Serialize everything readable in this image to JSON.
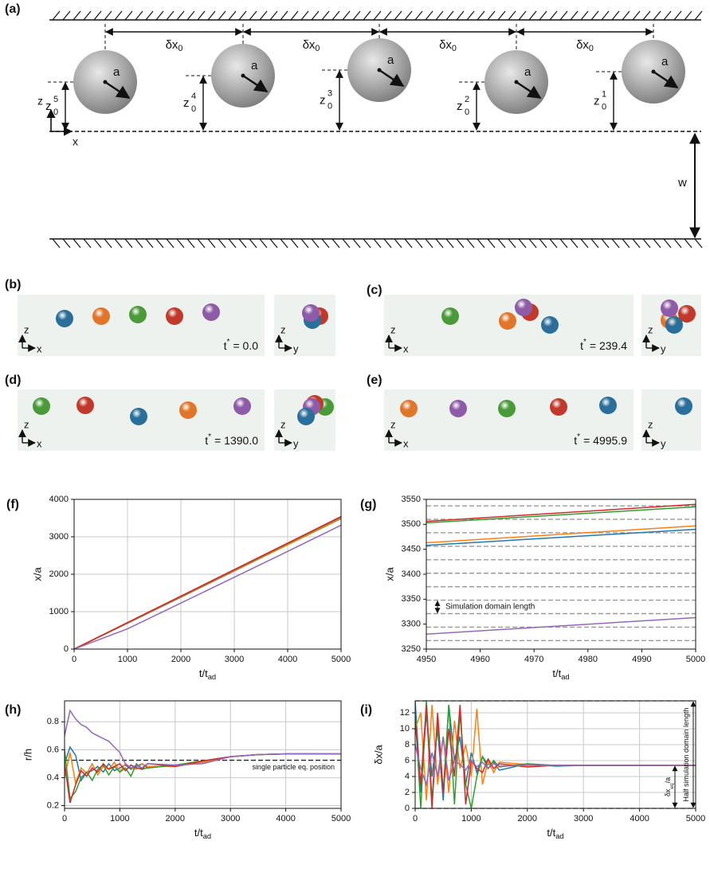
{
  "schematic": {
    "label": "(a)",
    "spacing": {
      "main": "δx",
      "sub": "0"
    },
    "radius": "a",
    "heights": [
      {
        "main": "z",
        "sup": "5",
        "sub": "0"
      },
      {
        "main": "z",
        "sup": "4",
        "sub": "0"
      },
      {
        "main": "z",
        "sup": "3",
        "sub": "0"
      },
      {
        "main": "z",
        "sup": "2",
        "sub": "0"
      },
      {
        "main": "z",
        "sup": "1",
        "sub": "0"
      }
    ],
    "gap": "w",
    "axes": {
      "z": "z",
      "x": "x"
    }
  },
  "snapshots": {
    "axes": {
      "z": "z",
      "x": "x",
      "y": "y"
    },
    "time_symbol": "t",
    "time_sup": "*",
    "particle_colors": [
      "#2a6f9b",
      "#e0762b",
      "#4a9a3a",
      "#c0392b",
      "#8e5ba8"
    ],
    "panels": [
      {
        "label": "(b)",
        "time": "= 0.0"
      },
      {
        "label": "(c)",
        "time": "= 239.4"
      },
      {
        "label": "(d)",
        "time": "= 1390.0"
      },
      {
        "label": "(e)",
        "time": "= 4995.9"
      }
    ]
  },
  "chart_data": [
    {
      "type": "line",
      "label": "(f)",
      "xlabel": "t/t",
      "xlabel_sub": "ad",
      "ylabel": "x/a",
      "x": [
        0,
        1000,
        2000,
        3000,
        4000,
        5000
      ],
      "series": [
        {
          "color": "#1f77b4",
          "values": [
            0,
            690,
            1385,
            2085,
            2785,
            3485
          ]
        },
        {
          "color": "#ff7f0e",
          "values": [
            0,
            695,
            1395,
            2095,
            2790,
            3495
          ]
        },
        {
          "color": "#2ca02c",
          "values": [
            0,
            705,
            1410,
            2115,
            2820,
            3530
          ]
        },
        {
          "color": "#d62728",
          "values": [
            0,
            708,
            1416,
            2124,
            2832,
            3540
          ]
        },
        {
          "color": "#9467bd",
          "values": [
            0,
            540,
            1230,
            1920,
            2610,
            3310
          ]
        }
      ],
      "xlim": [
        0,
        5000
      ],
      "xticks": [
        0,
        1000,
        2000,
        3000,
        4000,
        5000
      ],
      "ylim": [
        0,
        4000
      ],
      "yticks": [
        0,
        1000,
        2000,
        3000,
        4000
      ],
      "grid": true
    },
    {
      "type": "line",
      "label": "(g)",
      "xlabel": "t/t",
      "xlabel_sub": "ad",
      "ylabel": "x/a",
      "x": [
        4950,
        5000
      ],
      "series": [
        {
          "color": "#1f77b4",
          "values": [
            3458,
            3490
          ]
        },
        {
          "color": "#ff7f0e",
          "values": [
            3463,
            3497
          ]
        },
        {
          "color": "#2ca02c",
          "values": [
            3503,
            3535
          ]
        },
        {
          "color": "#d62728",
          "values": [
            3506,
            3540
          ]
        },
        {
          "color": "#9467bd",
          "values": [
            3280,
            3313
          ]
        }
      ],
      "hlines": [
        3537,
        3510,
        3483,
        3456,
        3429,
        3402,
        3375,
        3348,
        3321,
        3294,
        3267
      ],
      "hline_color": "#999999",
      "annotations": [
        {
          "text": "Simulation domain length",
          "y": [
            3321,
            3348
          ]
        }
      ],
      "xlim": [
        4950,
        5000
      ],
      "xticks": [
        4950,
        4960,
        4970,
        4980,
        4990,
        5000
      ],
      "ylim": [
        3250,
        3550
      ],
      "yticks": [
        3250,
        3300,
        3350,
        3400,
        3450,
        3500,
        3550
      ],
      "grid": false
    },
    {
      "type": "line",
      "label": "(h)",
      "xlabel": "t/t",
      "xlabel_sub": "ad",
      "ylabel": "r/h",
      "x": [
        0,
        100,
        200,
        300,
        400,
        500,
        600,
        700,
        800,
        900,
        1000,
        1100,
        1200,
        1300,
        1400,
        1500,
        2000,
        2500,
        3000,
        3500,
        4000,
        4500,
        5000
      ],
      "series": [
        {
          "color": "#1f77b4",
          "values": [
            0.5,
            0.62,
            0.56,
            0.38,
            0.44,
            0.45,
            0.48,
            0.44,
            0.5,
            0.45,
            0.47,
            0.49,
            0.46,
            0.48,
            0.5,
            0.47,
            0.49,
            0.51,
            0.55,
            0.565,
            0.57,
            0.57,
            0.57
          ]
        },
        {
          "color": "#ff7f0e",
          "values": [
            0.4,
            0.58,
            0.36,
            0.47,
            0.43,
            0.5,
            0.42,
            0.48,
            0.46,
            0.51,
            0.44,
            0.5,
            0.47,
            0.46,
            0.5,
            0.48,
            0.48,
            0.51,
            0.55,
            0.565,
            0.57,
            0.57,
            0.57
          ]
        },
        {
          "color": "#2ca02c",
          "values": [
            0.6,
            0.25,
            0.3,
            0.4,
            0.44,
            0.38,
            0.46,
            0.49,
            0.42,
            0.48,
            0.44,
            0.47,
            0.41,
            0.5,
            0.46,
            0.47,
            0.49,
            0.52,
            0.55,
            0.565,
            0.57,
            0.57,
            0.57
          ]
        },
        {
          "color": "#d62728",
          "values": [
            0.5,
            0.22,
            0.35,
            0.45,
            0.41,
            0.47,
            0.44,
            0.5,
            0.46,
            0.48,
            0.5,
            0.45,
            0.49,
            0.47,
            0.46,
            0.5,
            0.48,
            0.52,
            0.55,
            0.565,
            0.57,
            0.57,
            0.57
          ]
        },
        {
          "color": "#9467bd",
          "values": [
            0.7,
            0.88,
            0.82,
            0.78,
            0.76,
            0.72,
            0.7,
            0.68,
            0.66,
            0.62,
            0.58,
            0.5,
            0.47,
            0.49,
            0.47,
            0.5,
            0.49,
            0.5,
            0.55,
            0.565,
            0.57,
            0.57,
            0.57
          ]
        }
      ],
      "hlines": [
        0.525
      ],
      "hline_color": "#222222",
      "annotations": [
        {
          "text": "single particle eq. position"
        }
      ],
      "xlim": [
        0,
        5000
      ],
      "xticks": [
        0,
        1000,
        2000,
        3000,
        4000,
        5000
      ],
      "ylim": [
        0.18,
        0.95
      ],
      "yticks": [
        0.2,
        0.4,
        0.6,
        0.8
      ],
      "grid": true
    },
    {
      "type": "line",
      "label": "(i)",
      "xlabel": "t/t",
      "xlabel_sub": "ad",
      "ylabel": "δx/a",
      "x": [
        0,
        100,
        200,
        300,
        400,
        500,
        600,
        700,
        800,
        900,
        1000,
        1100,
        1200,
        1300,
        1400,
        1500,
        2000,
        2500,
        3000,
        3500,
        4000,
        4500,
        5000
      ],
      "series": [
        {
          "color": "#1f77b4",
          "values": [
            13.5,
            2,
            12,
            4,
            10,
            1,
            13,
            6,
            9,
            3,
            7,
            4.5,
            6.5,
            5.5,
            5.8,
            4.8,
            5.6,
            5.3,
            5.4,
            5.4,
            5.4,
            5.4,
            5.4
          ]
        },
        {
          "color": "#ff7f0e",
          "values": [
            10,
            12,
            1,
            13,
            3,
            9,
            2,
            11,
            5,
            8,
            4,
            12.5,
            3,
            6,
            4.5,
            5.8,
            5.5,
            5.4,
            5.4,
            5.4,
            5.4,
            5.4,
            5.4
          ]
        },
        {
          "color": "#2ca02c",
          "values": [
            12,
            0,
            13.5,
            1,
            11,
            2,
            13,
            0.5,
            12,
            3,
            0,
            4,
            6.5,
            5,
            6,
            5.2,
            5.6,
            5.4,
            5.4,
            5.4,
            5.4,
            5.4,
            5.4
          ]
        },
        {
          "color": "#d62728",
          "values": [
            11,
            3,
            13,
            0,
            12,
            2,
            10,
            4,
            13,
            0.5,
            6,
            5,
            4.5,
            6.2,
            5,
            5.6,
            5.2,
            5.4,
            5.4,
            5.4,
            5.4,
            5.4,
            5.4
          ]
        },
        {
          "color": "#9467bd",
          "values": [
            8,
            5,
            3,
            7,
            4,
            9,
            3.5,
            6,
            5.5,
            4.8,
            6,
            5.2,
            5.8,
            5,
            5.6,
            5.3,
            5.4,
            5.4,
            5.4,
            5.4,
            5.4,
            5.4,
            5.4
          ]
        }
      ],
      "hlines": [
        0,
        13.5
      ],
      "hline_color": "#999999",
      "annotations": [
        {
          "text": "Half simulation domain length",
          "y": [
            0,
            13.5
          ],
          "rotated": true
        },
        {
          "text": "δx",
          "sub": "eq",
          "rest": "/a",
          "y": [
            0,
            5.4
          ],
          "rotated": true
        }
      ],
      "xlim": [
        0,
        5000
      ],
      "xticks": [
        0,
        1000,
        2000,
        3000,
        4000,
        5000
      ],
      "ylim": [
        0,
        13.5
      ],
      "yticks": [
        0,
        2,
        4,
        6,
        8,
        10,
        12
      ],
      "grid": true
    }
  ]
}
